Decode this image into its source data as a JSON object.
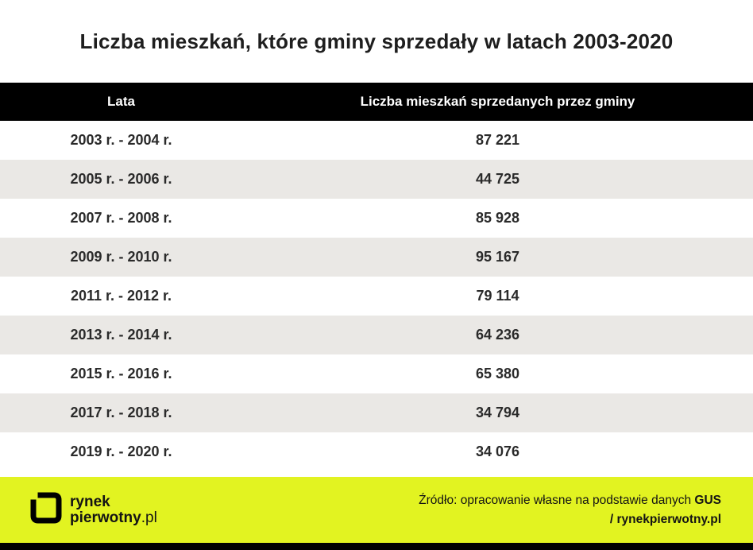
{
  "title": "Liczba mieszkań, które gminy sprzedały w latach 2003-2020",
  "chart_data": {
    "type": "table",
    "columns": [
      "Lata",
      "Liczba mieszkań sprzedanych przez gminy"
    ],
    "rows": [
      [
        "2003 r. - 2004 r.",
        "87 221"
      ],
      [
        "2005 r. - 2006 r.",
        "44 725"
      ],
      [
        "2007 r. - 2008 r.",
        "85 928"
      ],
      [
        "2009 r. - 2010 r.",
        "95 167"
      ],
      [
        "2011 r. - 2012 r.",
        "79 114"
      ],
      [
        "2013 r. - 2014 r.",
        "64 236"
      ],
      [
        "2015 r. - 2016 r.",
        "65 380"
      ],
      [
        "2017 r. - 2018 r.",
        "34 794"
      ],
      [
        "2019 r. - 2020 r.",
        "34 076"
      ]
    ],
    "title": "Liczba mieszkań, które gminy sprzedały w latach 2003-2020",
    "legend": false,
    "grid": false
  },
  "footer": {
    "logo_line1": "rynek",
    "logo_line2": "pierwotny",
    "logo_suffix": ".pl",
    "source_label": "Źródło:",
    "source_text": " opracowanie własne na podstawie danych ",
    "source_bold": "GUS",
    "source_line2": "/ rynekpierwotny.pl"
  },
  "colors": {
    "accent_lime": "#e2f321",
    "header_bg": "#000000",
    "row_alt_bg": "#eae8e5",
    "text_dark": "#1e1e1e"
  }
}
